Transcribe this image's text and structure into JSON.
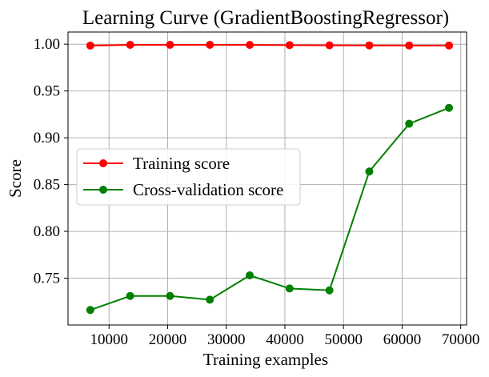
{
  "chart_data": {
    "type": "line",
    "title": "Learning Curve (GradientBoostingRegressor)",
    "xlabel": "Training examples",
    "ylabel": "Score",
    "xlim": [
      3000,
      71000
    ],
    "ylim": [
      0.7,
      1.013
    ],
    "grid": true,
    "legend_position": "center-left",
    "x_ticks": [
      10000,
      20000,
      30000,
      40000,
      50000,
      60000,
      70000
    ],
    "x_tick_labels": [
      "10000",
      "20000",
      "30000",
      "40000",
      "50000",
      "60000",
      "70000"
    ],
    "y_ticks": [
      0.75,
      0.8,
      0.85,
      0.9,
      0.95,
      1.0
    ],
    "y_tick_labels": [
      "0.75",
      "0.80",
      "0.85",
      "0.90",
      "0.95",
      "1.00"
    ],
    "x": [
      6800,
      13600,
      20400,
      27200,
      34000,
      40800,
      47600,
      54400,
      61200,
      68000
    ],
    "series": [
      {
        "name": "Training score",
        "color": "#ff0000",
        "values": [
          0.9985,
          0.9993,
          0.9993,
          0.9993,
          0.9992,
          0.999,
          0.9988,
          0.9987,
          0.9986,
          0.9986
        ]
      },
      {
        "name": "Cross-validation score",
        "color": "#008000",
        "values": [
          0.716,
          0.731,
          0.731,
          0.727,
          0.753,
          0.739,
          0.737,
          0.864,
          0.915,
          0.932
        ]
      }
    ]
  }
}
